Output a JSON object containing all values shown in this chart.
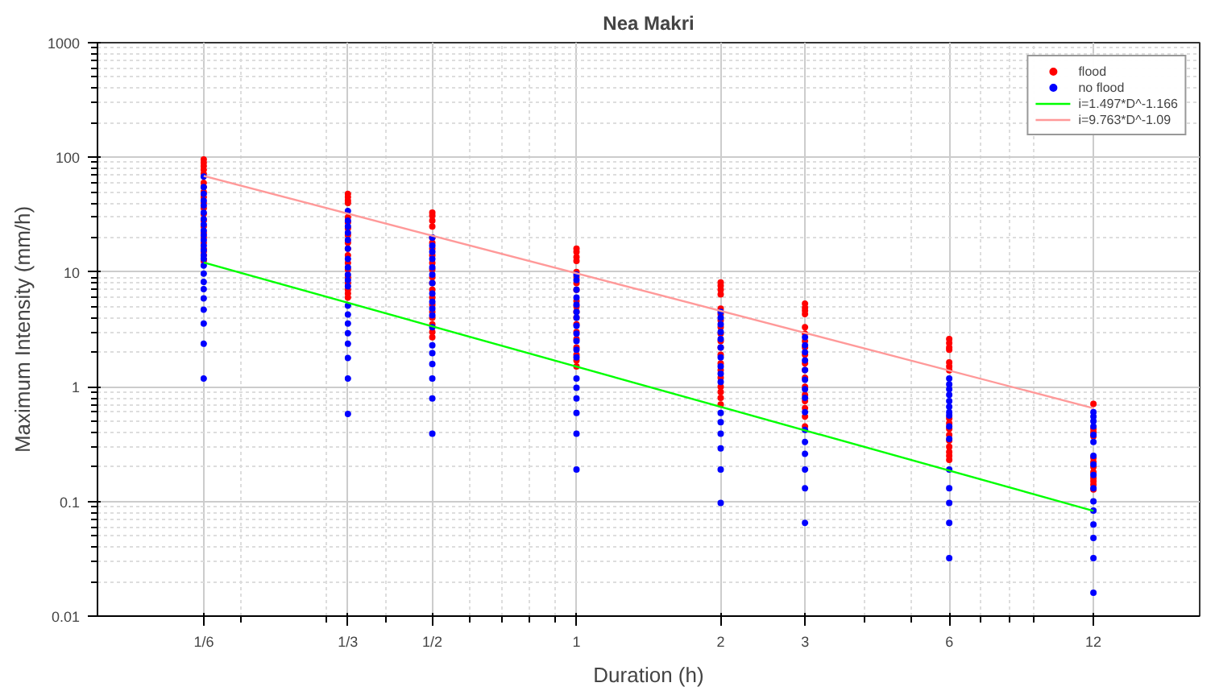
{
  "chart_data": {
    "type": "scatter",
    "title": "Nea Makri",
    "xlabel": "Duration (h)",
    "ylabel": "Maximum Intensity (mm/h)",
    "log": "xy",
    "grid": true,
    "legend": "top right",
    "xlim": [
      0.1,
      20
    ],
    "ylim": [
      0.01,
      1000
    ],
    "xticks": [
      {
        "value": 0.16667,
        "label": "1/6"
      },
      {
        "value": 0.33333,
        "label": "1/3"
      },
      {
        "value": 0.5,
        "label": "1/2"
      },
      1,
      2,
      3,
      6,
      12
    ],
    "yticks": [
      0.01,
      0.1,
      1,
      10,
      100,
      1000
    ],
    "series": [
      {
        "name": "flood",
        "color": "#ff0000",
        "marker": "circle",
        "x": [
          0.16667,
          0.16667,
          0.16667,
          0.16667,
          0.16667,
          0.16667,
          0.16667,
          0.16667,
          0.16667,
          0.16667,
          0.16667,
          0.16667,
          0.16667,
          0.16667,
          0.16667,
          0.16667,
          0.16667,
          0.16667,
          0.16667,
          0.16667,
          0.16667,
          0.16667,
          0.33333,
          0.33333,
          0.33333,
          0.33333,
          0.33333,
          0.33333,
          0.33333,
          0.33333,
          0.33333,
          0.33333,
          0.33333,
          0.33333,
          0.33333,
          0.33333,
          0.33333,
          0.33333,
          0.33333,
          0.33333,
          0.5,
          0.5,
          0.5,
          0.5,
          0.5,
          0.5,
          0.5,
          0.5,
          0.5,
          0.5,
          0.5,
          0.5,
          0.5,
          0.5,
          0.5,
          0.5,
          0.5,
          0.5,
          0.5,
          0.5,
          1,
          1,
          1,
          1,
          1,
          1,
          1,
          1,
          1,
          1,
          1,
          1,
          1,
          1,
          1,
          1,
          1,
          1,
          1,
          2,
          2,
          2,
          2,
          2,
          2,
          2,
          2,
          2,
          2,
          2,
          2,
          2,
          2,
          2,
          2,
          2,
          2,
          2,
          3,
          3,
          3,
          3,
          3,
          3,
          3,
          3,
          3,
          3,
          3,
          3,
          3,
          3,
          3,
          3,
          3,
          3,
          6,
          6,
          6,
          6,
          6,
          6,
          6,
          6,
          6,
          6,
          6,
          6,
          6,
          6,
          6,
          6,
          12,
          12,
          12,
          12,
          12,
          12,
          12,
          12,
          12,
          12,
          12,
          12
        ],
        "values": [
          96,
          90,
          84,
          78,
          72,
          60,
          55,
          50,
          45,
          40,
          36,
          32,
          28,
          25,
          22,
          20,
          18,
          16,
          15,
          14,
          13,
          12.5,
          48,
          45,
          42,
          40,
          30,
          27,
          24,
          21,
          18,
          16,
          14,
          12,
          10.5,
          9,
          8,
          7,
          6.5,
          6,
          33,
          31,
          28,
          25,
          20,
          18,
          16,
          14,
          12,
          10.5,
          9,
          8,
          7,
          6,
          5.2,
          4.5,
          4,
          3.5,
          3,
          2.7,
          16,
          15,
          13.5,
          12.5,
          10,
          9,
          8,
          7,
          5.6,
          5,
          4.5,
          4,
          3.5,
          3,
          2.6,
          2.2,
          1.9,
          1.7,
          1.5,
          8.1,
          7.6,
          7,
          6.4,
          4.8,
          4.3,
          3.8,
          3.3,
          2.9,
          2.5,
          2.2,
          1.9,
          1.6,
          1.4,
          1.2,
          1.0,
          0.9,
          0.8,
          0.7,
          5.3,
          4.9,
          4.6,
          4.3,
          3.3,
          2.9,
          2.5,
          2.2,
          1.9,
          1.6,
          1.4,
          1.2,
          1.0,
          0.85,
          0.75,
          0.65,
          0.55,
          0.45,
          2.6,
          2.4,
          2.2,
          2.1,
          1.63,
          1.5,
          1.39,
          0.53,
          0.48,
          0.43,
          0.38,
          0.34,
          0.3,
          0.27,
          0.25,
          0.23,
          0.71,
          0.43,
          0.4,
          0.37,
          0.24,
          0.22,
          0.2,
          0.18,
          0.16,
          0.15,
          0.14,
          0.127
        ]
      },
      {
        "name": "no flood",
        "color": "#0000ff",
        "marker": "circle",
        "x": [
          0.16667,
          0.16667,
          0.16667,
          0.16667,
          0.16667,
          0.16667,
          0.16667,
          0.16667,
          0.16667,
          0.16667,
          0.16667,
          0.16667,
          0.16667,
          0.16667,
          0.16667,
          0.16667,
          0.16667,
          0.16667,
          0.16667,
          0.16667,
          0.16667,
          0.16667,
          0.16667,
          0.16667,
          0.33333,
          0.33333,
          0.33333,
          0.33333,
          0.33333,
          0.33333,
          0.33333,
          0.33333,
          0.33333,
          0.33333,
          0.33333,
          0.33333,
          0.33333,
          0.33333,
          0.33333,
          0.33333,
          0.33333,
          0.33333,
          0.33333,
          0.5,
          0.5,
          0.5,
          0.5,
          0.5,
          0.5,
          0.5,
          0.5,
          0.5,
          0.5,
          0.5,
          0.5,
          0.5,
          0.5,
          0.5,
          0.5,
          0.5,
          0.5,
          1,
          1,
          1,
          1,
          1,
          1,
          1,
          1,
          1,
          1,
          1,
          1,
          1,
          1,
          1,
          1,
          1,
          1,
          2,
          2,
          2,
          2,
          2,
          2,
          2,
          2,
          2,
          2,
          2,
          2,
          2,
          2,
          2,
          2,
          3,
          3,
          3,
          3,
          3,
          3,
          3,
          3,
          3,
          3,
          3,
          3,
          3,
          3,
          3,
          6,
          6,
          6,
          6,
          6,
          6,
          6,
          6,
          6,
          6,
          6,
          6,
          6,
          6,
          6,
          12,
          12,
          12,
          12,
          12,
          12,
          12,
          12,
          12,
          12,
          12,
          12,
          12,
          12,
          12,
          12
        ],
        "values": [
          68,
          55,
          48,
          42,
          38,
          33,
          29,
          26,
          23,
          21,
          19,
          17,
          15.5,
          14,
          13,
          11.4,
          9.7,
          8.2,
          7.1,
          5.9,
          4.7,
          3.56,
          2.37,
          1.18,
          34,
          28,
          25,
          22,
          19,
          16,
          13,
          11,
          9.5,
          8.5,
          7.5,
          5.1,
          4.26,
          3.56,
          2.93,
          2.37,
          1.78,
          1.18,
          0.58,
          20,
          17,
          15,
          13,
          11,
          9.5,
          8,
          6.5,
          5.5,
          4.8,
          4.2,
          3.3,
          2.3,
          1.96,
          1.58,
          1.18,
          0.79,
          0.39,
          9.5,
          8.5,
          7,
          6,
          5.2,
          4.5,
          4,
          3.4,
          2.9,
          2.5,
          2.1,
          1.8,
          1.18,
          0.98,
          0.79,
          0.59,
          0.39,
          0.19,
          4.5,
          4,
          3.5,
          3,
          2.6,
          2.2,
          1.8,
          1.5,
          1.3,
          1.1,
          0.59,
          0.49,
          0.39,
          0.29,
          0.19,
          0.097,
          2.7,
          2.3,
          2.0,
          1.7,
          1.4,
          1.15,
          0.95,
          0.8,
          0.6,
          0.42,
          0.33,
          0.26,
          0.19,
          0.13,
          0.065,
          1.18,
          1.05,
          0.95,
          0.85,
          0.75,
          0.67,
          0.6,
          0.56,
          0.45,
          0.35,
          0.19,
          0.13,
          0.097,
          0.065,
          0.032,
          0.6,
          0.55,
          0.5,
          0.45,
          0.38,
          0.33,
          0.25,
          0.21,
          0.17,
          0.13,
          0.1,
          0.083,
          0.063,
          0.048,
          0.032,
          0.016
        ]
      },
      {
        "name": "i=1.497*D^-1.166",
        "type": "line",
        "marker": "none",
        "color": "#00ff00",
        "x": [
          0.16667,
          12
        ],
        "values": [
          12.1,
          0.0827
        ]
      },
      {
        "name": "i=9.763*D^-1.09",
        "type": "line",
        "marker": "none",
        "color": "#ff9999",
        "x": [
          0.16667,
          12
        ],
        "values": [
          68.8,
          0.65
        ]
      }
    ]
  }
}
